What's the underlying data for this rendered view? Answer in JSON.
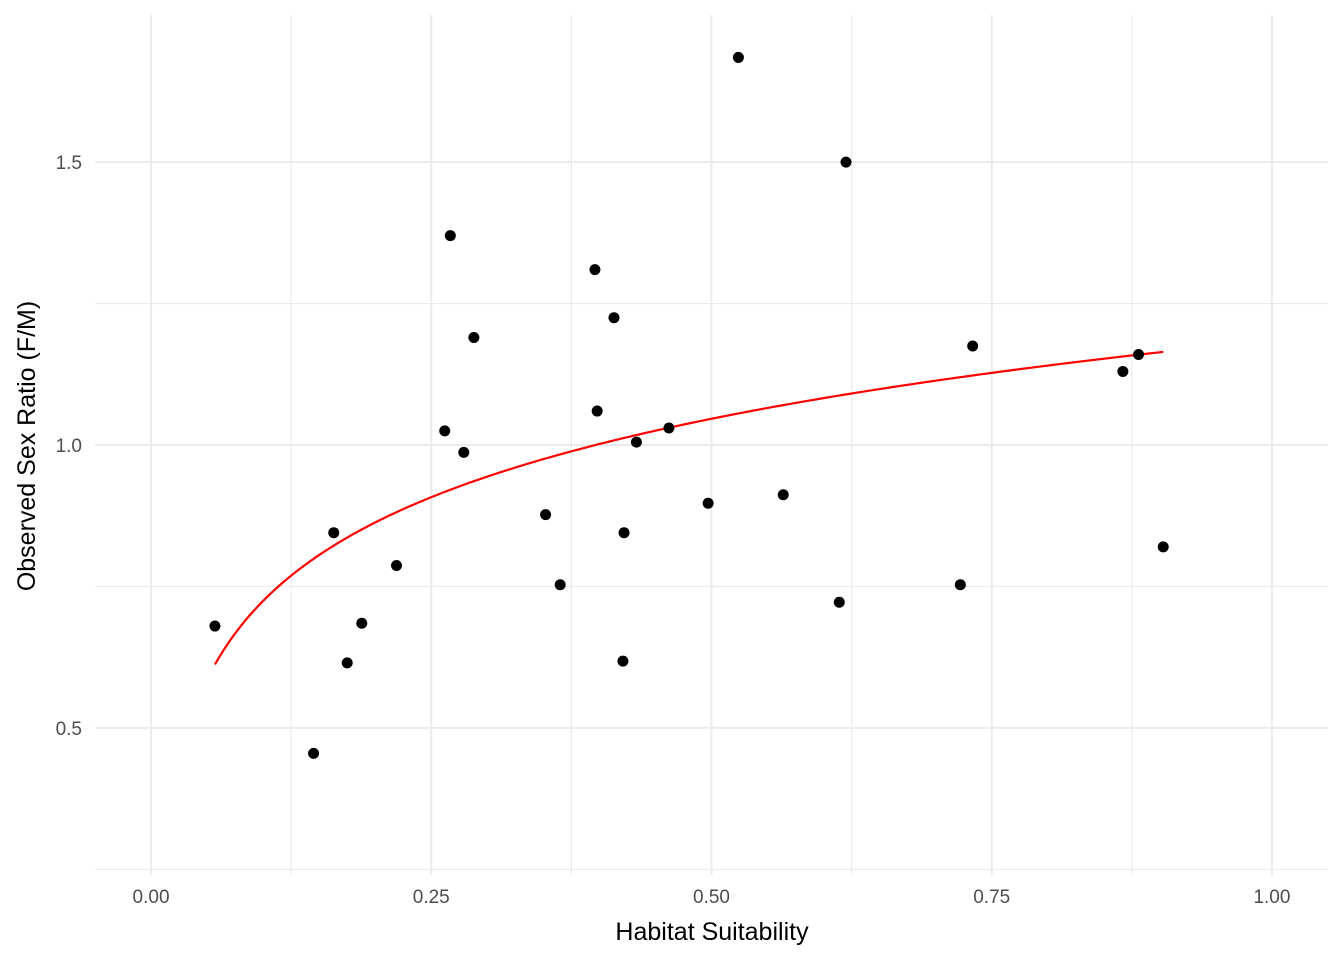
{
  "chart_data": {
    "type": "scatter",
    "title": "",
    "xlabel": "Habitat Suitability",
    "ylabel": "Observed Sex Ratio (F/M)",
    "xlim": [
      -0.05,
      1.05
    ],
    "ylim": [
      0.24,
      1.76
    ],
    "x_ticks": [
      0.0,
      0.25,
      0.5,
      0.75,
      1.0
    ],
    "x_tick_labels": [
      "0.00",
      "0.25",
      "0.50",
      "0.75",
      "1.00"
    ],
    "x_minor_ticks": [
      0.125,
      0.375,
      0.625,
      0.875
    ],
    "y_ticks": [
      0.5,
      1.0,
      1.5
    ],
    "y_tick_labels": [
      "0.5",
      "1.0",
      "1.5"
    ],
    "y_minor_ticks": [
      0.25,
      0.75,
      1.25
    ],
    "grid": true,
    "point_color": "#000000",
    "fit_color": "#ff0000",
    "points": [
      {
        "x": 0.057,
        "y": 0.68
      },
      {
        "x": 0.145,
        "y": 0.455
      },
      {
        "x": 0.163,
        "y": 0.845
      },
      {
        "x": 0.175,
        "y": 0.615
      },
      {
        "x": 0.188,
        "y": 0.685
      },
      {
        "x": 0.219,
        "y": 0.787
      },
      {
        "x": 0.262,
        "y": 1.025
      },
      {
        "x": 0.267,
        "y": 1.37
      },
      {
        "x": 0.279,
        "y": 0.987
      },
      {
        "x": 0.288,
        "y": 1.19
      },
      {
        "x": 0.352,
        "y": 0.877
      },
      {
        "x": 0.365,
        "y": 0.753
      },
      {
        "x": 0.396,
        "y": 1.31
      },
      {
        "x": 0.398,
        "y": 1.06
      },
      {
        "x": 0.413,
        "y": 1.225
      },
      {
        "x": 0.421,
        "y": 0.618
      },
      {
        "x": 0.422,
        "y": 0.845
      },
      {
        "x": 0.433,
        "y": 1.005
      },
      {
        "x": 0.462,
        "y": 1.03
      },
      {
        "x": 0.497,
        "y": 0.897
      },
      {
        "x": 0.524,
        "y": 1.685
      },
      {
        "x": 0.564,
        "y": 0.912
      },
      {
        "x": 0.614,
        "y": 0.722
      },
      {
        "x": 0.62,
        "y": 1.5
      },
      {
        "x": 0.722,
        "y": 0.753
      },
      {
        "x": 0.733,
        "y": 1.175
      },
      {
        "x": 0.867,
        "y": 1.13
      },
      {
        "x": 0.881,
        "y": 1.16
      },
      {
        "x": 0.903,
        "y": 0.82
      }
    ],
    "fit": {
      "type": "log",
      "intercept": 1.185,
      "slope": 0.2,
      "x_range": [
        0.057,
        0.903
      ]
    }
  }
}
